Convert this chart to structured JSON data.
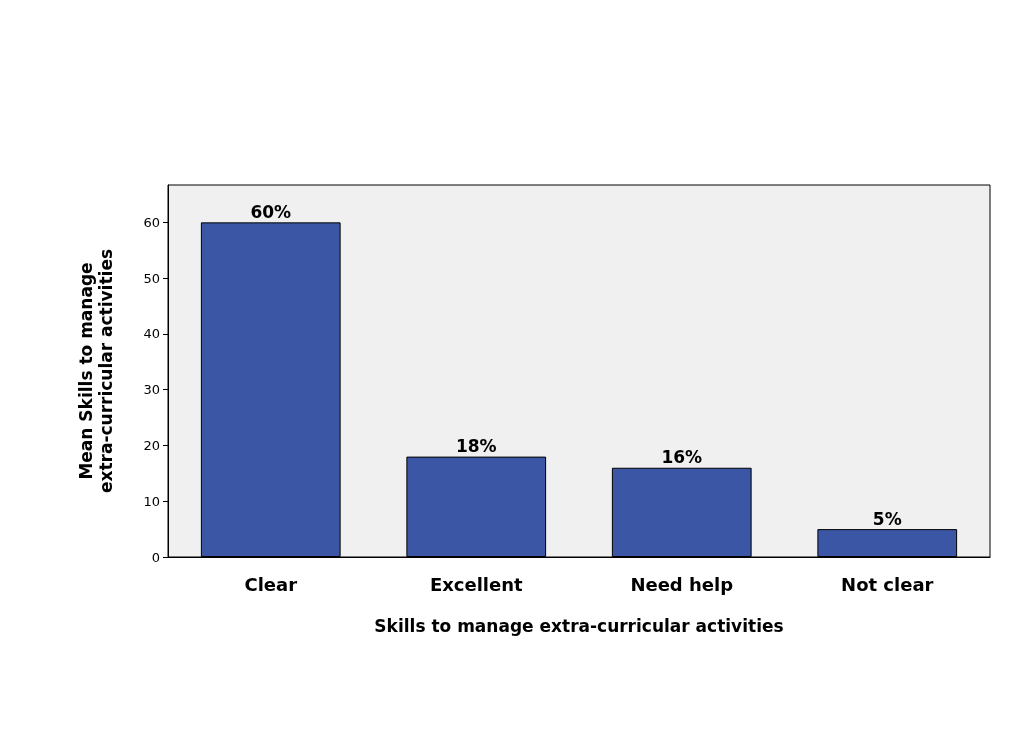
{
  "chart_data": {
    "type": "bar",
    "xlabel": "Skills to manage extra-curricular activities",
    "ylabel": "Mean Skills to manage\nextra-curricular activities",
    "categories": [
      "Clear",
      "Excellent",
      "Need help",
      "Not clear"
    ],
    "values": [
      60,
      18,
      16,
      5
    ],
    "value_labels": [
      "60%",
      "18%",
      "16%",
      "5%"
    ],
    "color": "#3c56a6",
    "ylim": [
      0,
      66.7
    ],
    "yticks": [
      0,
      10,
      20,
      30,
      40,
      50,
      60
    ],
    "grid": false
  }
}
